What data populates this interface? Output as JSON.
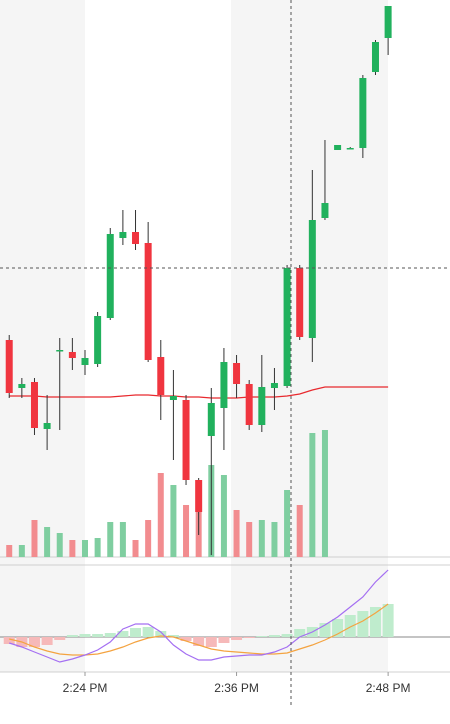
{
  "chart_data": [
    {
      "type": "candlestick",
      "x": [
        18,
        19,
        20,
        21,
        22,
        23,
        24,
        25,
        26,
        27,
        28,
        29,
        30,
        31,
        32,
        33,
        34,
        35,
        36,
        37,
        38,
        39,
        40,
        41,
        42,
        43,
        44,
        45,
        46,
        47,
        48
      ],
      "open": [
        217,
        169,
        175,
        128,
        206,
        205,
        192,
        193,
        239,
        319,
        325,
        314,
        200,
        157,
        157,
        77,
        121,
        149,
        194,
        173,
        132,
        169,
        171,
        289,
        219,
        339,
        407,
        409,
        409,
        485,
        519
      ],
      "high": [
        222,
        179,
        179,
        162,
        219,
        219,
        207,
        245,
        329,
        347,
        347,
        335,
        217,
        187,
        162,
        79,
        169,
        209,
        202,
        177,
        202,
        189,
        292,
        292,
        387,
        417,
        412,
        410,
        482,
        517,
        551
      ],
      "low": [
        159,
        159,
        122,
        107,
        127,
        187,
        182,
        190,
        237,
        312,
        307,
        195,
        137,
        97,
        72,
        22,
        2,
        107,
        159,
        127,
        125,
        147,
        169,
        217,
        195,
        337,
        407,
        408,
        399,
        482,
        502
      ],
      "close": [
        164,
        173,
        129,
        134,
        207,
        199,
        199,
        241,
        323,
        325,
        313,
        197,
        162,
        161,
        77,
        45,
        154,
        195,
        173,
        132,
        170,
        174,
        289,
        220,
        337,
        354,
        412,
        409,
        479,
        515,
        551
      ],
      "up_color": "#21b15d",
      "down_color": "#f0353f",
      "moving_average": {
        "values": [
          161,
          161,
          161,
          160,
          160,
          160,
          160,
          160,
          160,
          161,
          162,
          162,
          161,
          161,
          160,
          160,
          159,
          159,
          159,
          160,
          160,
          160,
          161,
          163,
          167,
          170,
          170,
          170,
          170,
          170,
          170
        ],
        "color": "#e8292e"
      },
      "volume": {
        "values": [
          12,
          12,
          37,
          30,
          24,
          17,
          17,
          19,
          35,
          35,
          17,
          37,
          84,
          72,
          52,
          77,
          92,
          82,
          47,
          35,
          37,
          35,
          67,
          52,
          124,
          127,
          null,
          null,
          null,
          null,
          null
        ],
        "ylim": [
          0,
          557
        ],
        "up_color": "#7fcea0",
        "down_color": "#f28c8f"
      },
      "xlim": [
        17.27,
        52.9
      ],
      "xticks": [
        {
          "value": 24,
          "label": "2:24 PM"
        },
        {
          "value": 36,
          "label": "2:36 PM"
        },
        {
          "value": 48,
          "label": "2:48 PM"
        }
      ],
      "ylim": [
        0,
        557
      ]
    },
    {
      "type": "macd",
      "histogram": [
        -7,
        -10,
        -10,
        -8,
        -3,
        2,
        3,
        3,
        4,
        6,
        9,
        10,
        6,
        2,
        -4,
        -9,
        -10,
        -6,
        -3,
        -1,
        1,
        2,
        3,
        8,
        10,
        14,
        18,
        22,
        26,
        30,
        33
      ],
      "macd": [
        -6,
        -10,
        -15,
        -20,
        -25,
        -22,
        -18,
        -13,
        -5,
        8,
        13,
        13,
        5,
        -8,
        -17,
        -23,
        -23,
        -20,
        -19,
        -18,
        -18,
        -15,
        -10,
        0,
        5,
        12,
        20,
        30,
        40,
        55,
        67
      ],
      "signal": [
        -2,
        -5,
        -10,
        -14,
        -17,
        -18,
        -18,
        -17,
        -14,
        -10,
        -5,
        -1,
        1,
        0,
        -4,
        -8,
        -12,
        -14,
        -15,
        -16,
        -17,
        -17,
        -16,
        -12,
        -8,
        -3,
        3,
        10,
        16,
        24,
        33
      ],
      "up_color": "#bfeccd",
      "down_color": "#f6b9b9",
      "macd_color": "#a46ff2",
      "signal_color": "#f4a340",
      "ylim": [
        -35,
        72
      ]
    }
  ]
}
